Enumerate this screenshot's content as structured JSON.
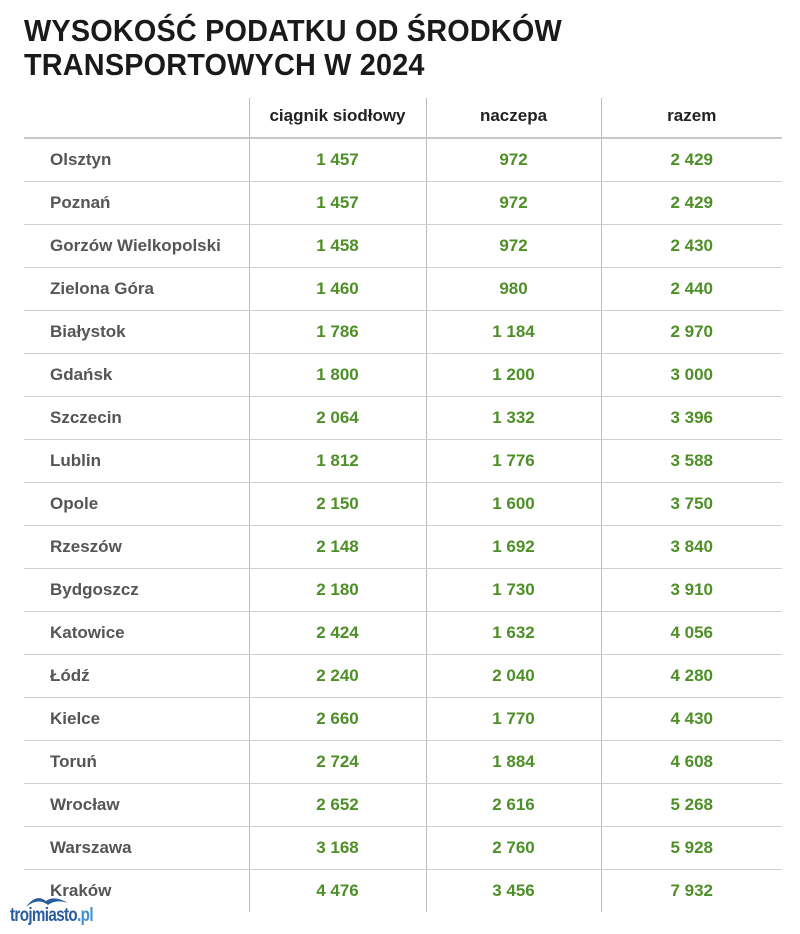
{
  "title_lines": [
    "WYSOKOŚĆ PODATKU OD ŚRODKÓW",
    "TRANSPORTOWYCH W 2024"
  ],
  "logo": {
    "name": "trojmiasto",
    "suffix": ".pl"
  },
  "colors": {
    "value_text": "#4e8f28",
    "city_text": "#555555",
    "logo": "#2a5d9f"
  },
  "chart_data": {
    "type": "table",
    "title": "WYSOKOŚĆ PODATKU OD ŚRODKÓW TRANSPORTOWYCH W 2024",
    "columns": [
      "",
      "ciągnik siodłowy",
      "naczepa",
      "razem"
    ],
    "rows": [
      [
        "Olsztyn",
        "1 457",
        "972",
        "2 429"
      ],
      [
        "Poznań",
        "1 457",
        "972",
        "2 429"
      ],
      [
        "Gorzów Wielkopolski",
        "1 458",
        "972",
        "2 430"
      ],
      [
        "Zielona Góra",
        "1 460",
        "980",
        "2 440"
      ],
      [
        "Białystok",
        "1 786",
        "1 184",
        "2 970"
      ],
      [
        "Gdańsk",
        "1 800",
        "1 200",
        "3 000"
      ],
      [
        "Szczecin",
        "2 064",
        "1 332",
        "3 396"
      ],
      [
        "Lublin",
        "1 812",
        "1 776",
        "3 588"
      ],
      [
        "Opole",
        "2 150",
        "1 600",
        "3 750"
      ],
      [
        "Rzeszów",
        "2 148",
        "1 692",
        "3 840"
      ],
      [
        "Bydgoszcz",
        "2 180",
        "1 730",
        "3 910"
      ],
      [
        "Katowice",
        "2 424",
        "1 632",
        "4 056"
      ],
      [
        "Łódź",
        "2 240",
        "2 040",
        "4 280"
      ],
      [
        "Kielce",
        "2 660",
        "1 770",
        "4 430"
      ],
      [
        "Toruń",
        "2 724",
        "1 884",
        "4 608"
      ],
      [
        "Wrocław",
        "2 652",
        "2 616",
        "5 268"
      ],
      [
        "Warszawa",
        "3 168",
        "2 760",
        "5 928"
      ],
      [
        "Kraków",
        "4 476",
        "3 456",
        "7 932"
      ]
    ]
  }
}
